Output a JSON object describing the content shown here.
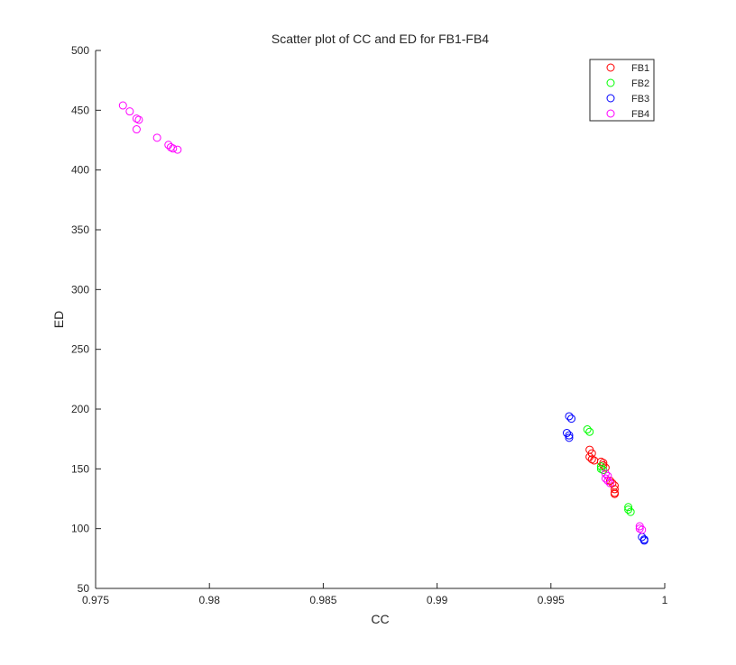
{
  "chart_data": {
    "type": "scatter",
    "title": "Scatter plot of CC and ED for FB1-FB4",
    "xlabel": "CC",
    "ylabel": "ED",
    "xlim": [
      0.975,
      1.0
    ],
    "ylim": [
      50,
      500
    ],
    "xticks": [
      "0.975",
      "0.98",
      "0.985",
      "0.99",
      "0.995",
      "1"
    ],
    "yticks": [
      "50",
      "100",
      "150",
      "200",
      "250",
      "300",
      "350",
      "400",
      "450",
      "500"
    ],
    "grid": false,
    "legend_position": "top-right",
    "marker": "open-circle",
    "series": [
      {
        "name": "FB1",
        "color": "#ff0000",
        "points": [
          [
            0.9967,
            166
          ],
          [
            0.9968,
            163
          ],
          [
            0.9967,
            160
          ],
          [
            0.9968,
            158
          ],
          [
            0.9969,
            157
          ],
          [
            0.9972,
            156
          ],
          [
            0.9973,
            155
          ],
          [
            0.9973,
            153
          ],
          [
            0.9974,
            151
          ],
          [
            0.9976,
            140
          ],
          [
            0.9977,
            138
          ],
          [
            0.9978,
            136
          ],
          [
            0.9978,
            133
          ],
          [
            0.9978,
            130
          ],
          [
            0.9978,
            129
          ]
        ]
      },
      {
        "name": "FB2",
        "color": "#00ff00",
        "points": [
          [
            0.9966,
            183
          ],
          [
            0.9967,
            181
          ],
          [
            0.9972,
            152
          ],
          [
            0.9972,
            150
          ],
          [
            0.9973,
            149
          ],
          [
            0.9984,
            118
          ],
          [
            0.9984,
            116
          ],
          [
            0.9985,
            114
          ]
        ]
      },
      {
        "name": "FB3",
        "color": "#0000ff",
        "points": [
          [
            0.9958,
            194
          ],
          [
            0.9959,
            192
          ],
          [
            0.9957,
            180
          ],
          [
            0.9958,
            178
          ],
          [
            0.9958,
            176
          ],
          [
            0.999,
            93
          ],
          [
            0.9991,
            91
          ],
          [
            0.9991,
            90
          ]
        ]
      },
      {
        "name": "FB4",
        "color": "#ff00ff",
        "points": [
          [
            0.9762,
            454
          ],
          [
            0.9765,
            449
          ],
          [
            0.9768,
            443
          ],
          [
            0.9769,
            442
          ],
          [
            0.9768,
            434
          ],
          [
            0.9777,
            427
          ],
          [
            0.9782,
            421
          ],
          [
            0.9783,
            419
          ],
          [
            0.9784,
            418
          ],
          [
            0.9786,
            417
          ],
          [
            0.9974,
            146
          ],
          [
            0.9975,
            144
          ],
          [
            0.9974,
            142
          ],
          [
            0.9975,
            140
          ],
          [
            0.9976,
            138
          ],
          [
            0.9989,
            102
          ],
          [
            0.9989,
            100
          ],
          [
            0.999,
            99
          ]
        ]
      }
    ]
  }
}
